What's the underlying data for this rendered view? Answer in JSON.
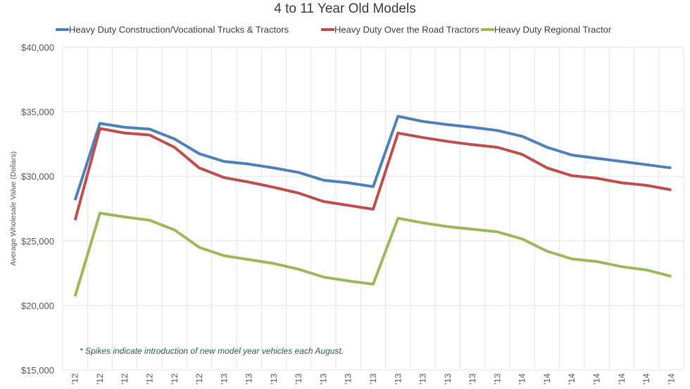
{
  "chart_data": {
    "type": "line",
    "title": "4 to 11 Year Old Models",
    "xlabel": "",
    "ylabel": "Average Wholesale Value (Dollars)",
    "ylim": [
      15000,
      40000
    ],
    "yticks": [
      15000,
      20000,
      25000,
      30000,
      35000,
      40000
    ],
    "ytick_labels": [
      "$15,000",
      "$20,000",
      "$25,000",
      "$30,000",
      "$35,000",
      "$40,000"
    ],
    "categories": [
      "'12",
      "'12",
      "'12",
      "'12",
      "'12",
      "'12",
      "'13",
      "'13",
      "'13",
      "'13",
      "'13",
      "'13",
      "'13",
      "'13",
      "'13",
      "'13",
      "'13",
      "'13",
      "'14",
      "'14",
      "'14",
      "'14",
      "'14",
      "'14",
      "'14"
    ],
    "grid": true,
    "legend_position": "top",
    "annotation": "* Spikes indicate introduction of new model year vehicles each August.",
    "series": [
      {
        "name": "Heavy Duty Construction/Vocational Trucks & Tractors",
        "color": "#4f81bd",
        "values": [
          28150,
          34100,
          33800,
          33650,
          32900,
          31750,
          31150,
          30950,
          30650,
          30300,
          29700,
          29500,
          29200,
          34650,
          34250,
          34000,
          33800,
          33550,
          33100,
          32250,
          31650,
          31400,
          31150,
          30900,
          30650
        ]
      },
      {
        "name": "Heavy Duty Over the Road Tractors",
        "color": "#c0504d",
        "values": [
          26600,
          33700,
          33350,
          33200,
          32250,
          30650,
          29900,
          29550,
          29150,
          28700,
          28050,
          27750,
          27450,
          33350,
          33000,
          32700,
          32450,
          32250,
          31700,
          30650,
          30050,
          29850,
          29500,
          29300,
          28950
        ]
      },
      {
        "name": "Heavy Duty Regional Tractor",
        "color": "#9bbb59",
        "values": [
          20700,
          27150,
          26850,
          26600,
          25850,
          24500,
          23850,
          23550,
          23250,
          22800,
          22200,
          21900,
          21650,
          26750,
          26400,
          26100,
          25900,
          25700,
          25150,
          24200,
          23600,
          23400,
          23000,
          22750,
          22250
        ]
      }
    ]
  }
}
